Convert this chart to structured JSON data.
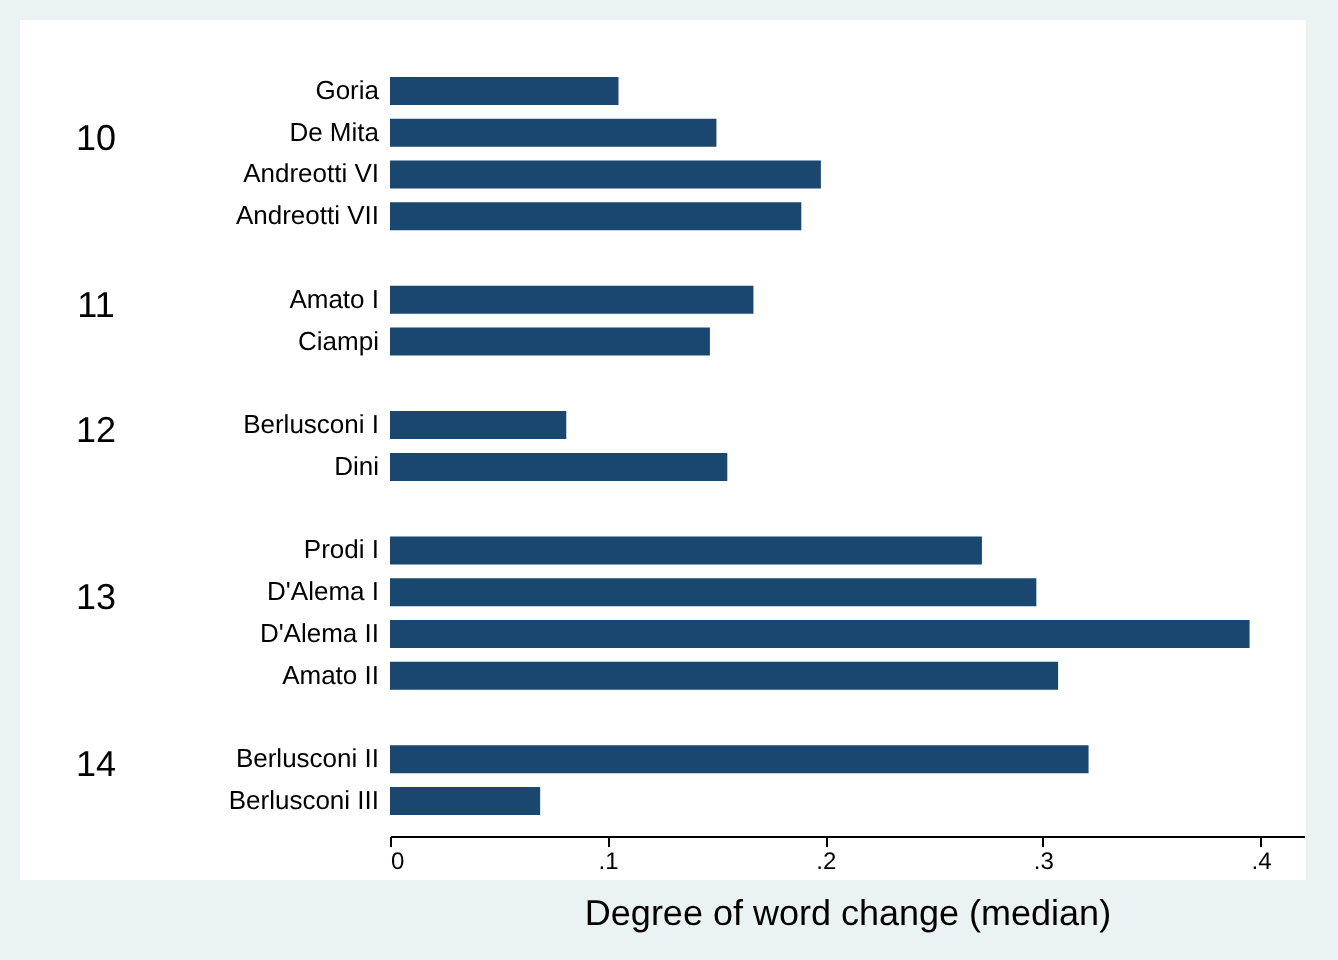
{
  "chart_data": {
    "type": "bar",
    "orientation": "horizontal",
    "xlabel": "Degree of word change (median)",
    "categories": [
      "Goria",
      "De Mita",
      "Andreotti VI",
      "Andreotti VII",
      null,
      "Amato I",
      "Ciampi",
      null,
      "Berlusconi I",
      "Dini",
      null,
      "Prodi I",
      "D'Alema I",
      "D'Alema II",
      "Amato II",
      null,
      "Berlusconi II",
      "Berlusconi III"
    ],
    "values": [
      0.105,
      0.15,
      0.198,
      0.189,
      null,
      0.167,
      0.147,
      null,
      0.081,
      0.155,
      null,
      0.272,
      0.297,
      0.395,
      0.307,
      null,
      0.321,
      0.069
    ],
    "color": "#1a476f",
    "xlim": [
      0,
      0.42
    ],
    "xticks": [
      0,
      {
        "value": 0.1,
        "label": ".1"
      },
      {
        "value": 0.2,
        "label": ".2"
      },
      {
        "value": 0.3,
        "label": ".3"
      },
      {
        "value": 0.4,
        "label": ".4"
      }
    ],
    "annotations": [
      "10",
      "11",
      "12",
      "13",
      "14"
    ],
    "grid": false
  }
}
